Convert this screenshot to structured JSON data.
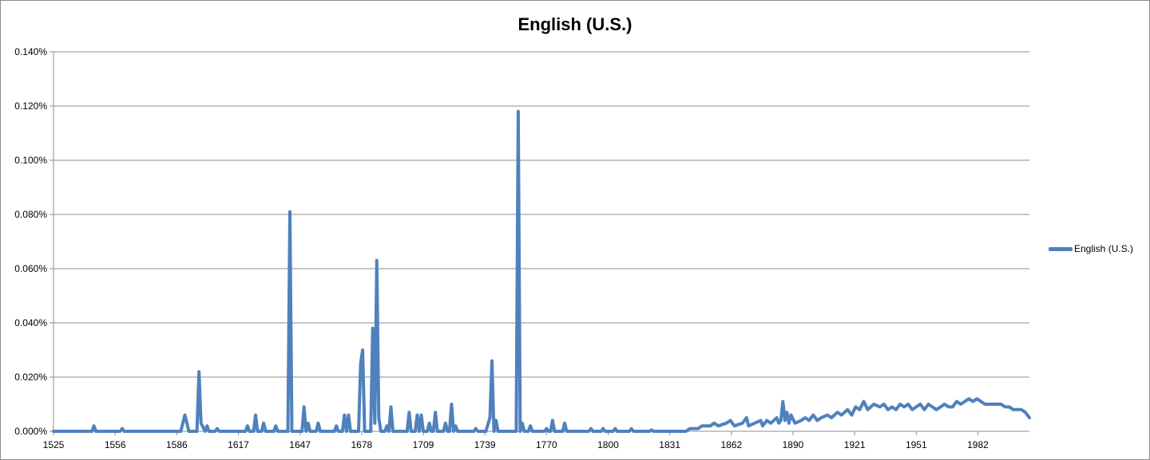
{
  "chart_data": {
    "type": "line",
    "title": "English (U.S.)",
    "xlabel": "",
    "ylabel": "",
    "x_tick_labels": [
      "1525",
      "1556",
      "1586",
      "1617",
      "1647",
      "1678",
      "1709",
      "1739",
      "1770",
      "1800",
      "1831",
      "1862",
      "1890",
      "1921",
      "1951",
      "1982"
    ],
    "y_tick_labels": [
      "0.000%",
      "0.020%",
      "0.040%",
      "0.060%",
      "0.080%",
      "0.100%",
      "0.120%",
      "0.140%"
    ],
    "xlim": [
      1525,
      2008
    ],
    "ylim": [
      0,
      0.14
    ],
    "y_unit": "%",
    "grid": true,
    "legend_position": "right",
    "series_color": "#4f81bd",
    "series": [
      {
        "name": "English (U.S.)",
        "points": [
          [
            1525,
            0
          ],
          [
            1544,
            0
          ],
          [
            1545,
            0.002
          ],
          [
            1546,
            0
          ],
          [
            1558,
            0
          ],
          [
            1559,
            0.001
          ],
          [
            1560,
            0
          ],
          [
            1588,
            0
          ],
          [
            1590,
            0.006
          ],
          [
            1592,
            0
          ],
          [
            1596,
            0
          ],
          [
            1597,
            0.022
          ],
          [
            1598,
            0.003
          ],
          [
            1600,
            0
          ],
          [
            1601,
            0.002
          ],
          [
            1602,
            0
          ],
          [
            1605,
            0
          ],
          [
            1606,
            0.001
          ],
          [
            1607,
            0
          ],
          [
            1620,
            0
          ],
          [
            1621,
            0.002
          ],
          [
            1622,
            0
          ],
          [
            1624,
            0
          ],
          [
            1625,
            0.006
          ],
          [
            1626,
            0
          ],
          [
            1628,
            0
          ],
          [
            1629,
            0.003
          ],
          [
            1630,
            0
          ],
          [
            1634,
            0
          ],
          [
            1635,
            0.002
          ],
          [
            1636,
            0
          ],
          [
            1641,
            0
          ],
          [
            1642,
            0.081
          ],
          [
            1643,
            0
          ],
          [
            1648,
            0
          ],
          [
            1649,
            0.009
          ],
          [
            1650,
            0
          ],
          [
            1651,
            0.003
          ],
          [
            1652,
            0
          ],
          [
            1655,
            0
          ],
          [
            1656,
            0.003
          ],
          [
            1657,
            0
          ],
          [
            1664,
            0
          ],
          [
            1665,
            0.002
          ],
          [
            1666,
            0
          ],
          [
            1668,
            0
          ],
          [
            1669,
            0.006
          ],
          [
            1670,
            0
          ],
          [
            1671,
            0.006
          ],
          [
            1672,
            0
          ],
          [
            1676,
            0
          ],
          [
            1677,
            0.025
          ],
          [
            1678,
            0.03
          ],
          [
            1679,
            0
          ],
          [
            1682,
            0
          ],
          [
            1683,
            0.038
          ],
          [
            1684,
            0.003
          ],
          [
            1685,
            0.063
          ],
          [
            1686,
            0.005
          ],
          [
            1687,
            0
          ],
          [
            1689,
            0
          ],
          [
            1690,
            0.002
          ],
          [
            1691,
            0
          ],
          [
            1692,
            0.009
          ],
          [
            1693,
            0
          ],
          [
            1700,
            0
          ],
          [
            1701,
            0.007
          ],
          [
            1702,
            0
          ],
          [
            1704,
            0
          ],
          [
            1705,
            0.006
          ],
          [
            1706,
            0
          ],
          [
            1707,
            0.006
          ],
          [
            1708,
            0
          ],
          [
            1710,
            0
          ],
          [
            1711,
            0.003
          ],
          [
            1712,
            0
          ],
          [
            1713,
            0
          ],
          [
            1714,
            0.007
          ],
          [
            1715,
            0
          ],
          [
            1718,
            0
          ],
          [
            1719,
            0.003
          ],
          [
            1720,
            0
          ],
          [
            1721,
            0
          ],
          [
            1722,
            0.01
          ],
          [
            1723,
            0
          ],
          [
            1724,
            0.002
          ],
          [
            1725,
            0
          ],
          [
            1733,
            0
          ],
          [
            1734,
            0.001
          ],
          [
            1735,
            0
          ],
          [
            1739,
            0
          ],
          [
            1741,
            0.005
          ],
          [
            1742,
            0.026
          ],
          [
            1743,
            0
          ],
          [
            1744,
            0.004
          ],
          [
            1745,
            0
          ],
          [
            1754,
            0
          ],
          [
            1755,
            0.118
          ],
          [
            1756,
            0
          ],
          [
            1757,
            0.003
          ],
          [
            1758,
            0
          ],
          [
            1760,
            0
          ],
          [
            1761,
            0.002
          ],
          [
            1762,
            0
          ],
          [
            1768,
            0
          ],
          [
            1769,
            0.001
          ],
          [
            1770,
            0
          ],
          [
            1771,
            0
          ],
          [
            1772,
            0.004
          ],
          [
            1773,
            0
          ],
          [
            1777,
            0
          ],
          [
            1778,
            0.003
          ],
          [
            1779,
            0
          ],
          [
            1790,
            0
          ],
          [
            1791,
            0.001
          ],
          [
            1792,
            0
          ],
          [
            1796,
            0
          ],
          [
            1797,
            0.001
          ],
          [
            1798,
            0
          ],
          [
            1802,
            0
          ],
          [
            1803,
            0.001
          ],
          [
            1804,
            0
          ],
          [
            1810,
            0
          ],
          [
            1811,
            0.001
          ],
          [
            1812,
            0
          ],
          [
            1820,
            0
          ],
          [
            1821,
            0.0005
          ],
          [
            1822,
            0
          ],
          [
            1838,
            0
          ],
          [
            1840,
            0.001
          ],
          [
            1844,
            0.001
          ],
          [
            1846,
            0.002
          ],
          [
            1850,
            0.002
          ],
          [
            1852,
            0.003
          ],
          [
            1854,
            0.002
          ],
          [
            1858,
            0.003
          ],
          [
            1860,
            0.004
          ],
          [
            1862,
            0.002
          ],
          [
            1866,
            0.003
          ],
          [
            1868,
            0.005
          ],
          [
            1869,
            0.002
          ],
          [
            1872,
            0.003
          ],
          [
            1875,
            0.004
          ],
          [
            1876,
            0.002
          ],
          [
            1878,
            0.004
          ],
          [
            1880,
            0.003
          ],
          [
            1883,
            0.005
          ],
          [
            1884,
            0.003
          ],
          [
            1885,
            0.004
          ],
          [
            1886,
            0.011
          ],
          [
            1887,
            0.004
          ],
          [
            1888,
            0.007
          ],
          [
            1889,
            0.003
          ],
          [
            1890,
            0.006
          ],
          [
            1892,
            0.003
          ],
          [
            1895,
            0.004
          ],
          [
            1897,
            0.005
          ],
          [
            1899,
            0.004
          ],
          [
            1901,
            0.006
          ],
          [
            1903,
            0.004
          ],
          [
            1905,
            0.005
          ],
          [
            1908,
            0.006
          ],
          [
            1910,
            0.005
          ],
          [
            1913,
            0.007
          ],
          [
            1915,
            0.006
          ],
          [
            1918,
            0.008
          ],
          [
            1920,
            0.006
          ],
          [
            1922,
            0.009
          ],
          [
            1924,
            0.008
          ],
          [
            1926,
            0.011
          ],
          [
            1928,
            0.008
          ],
          [
            1931,
            0.01
          ],
          [
            1934,
            0.009
          ],
          [
            1936,
            0.01
          ],
          [
            1938,
            0.008
          ],
          [
            1940,
            0.009
          ],
          [
            1942,
            0.008
          ],
          [
            1944,
            0.01
          ],
          [
            1946,
            0.009
          ],
          [
            1948,
            0.01
          ],
          [
            1950,
            0.008
          ],
          [
            1952,
            0.009
          ],
          [
            1954,
            0.01
          ],
          [
            1956,
            0.008
          ],
          [
            1958,
            0.01
          ],
          [
            1960,
            0.009
          ],
          [
            1962,
            0.008
          ],
          [
            1964,
            0.009
          ],
          [
            1966,
            0.01
          ],
          [
            1968,
            0.009
          ],
          [
            1970,
            0.009
          ],
          [
            1972,
            0.011
          ],
          [
            1974,
            0.01
          ],
          [
            1976,
            0.011
          ],
          [
            1978,
            0.012
          ],
          [
            1980,
            0.011
          ],
          [
            1982,
            0.012
          ],
          [
            1984,
            0.011
          ],
          [
            1986,
            0.01
          ],
          [
            1988,
            0.01
          ],
          [
            1990,
            0.01
          ],
          [
            1992,
            0.01
          ],
          [
            1994,
            0.01
          ],
          [
            1996,
            0.009
          ],
          [
            1998,
            0.009
          ],
          [
            2000,
            0.008
          ],
          [
            2002,
            0.008
          ],
          [
            2004,
            0.008
          ],
          [
            2006,
            0.007
          ],
          [
            2007,
            0.006
          ],
          [
            2008,
            0.005
          ]
        ]
      }
    ]
  }
}
